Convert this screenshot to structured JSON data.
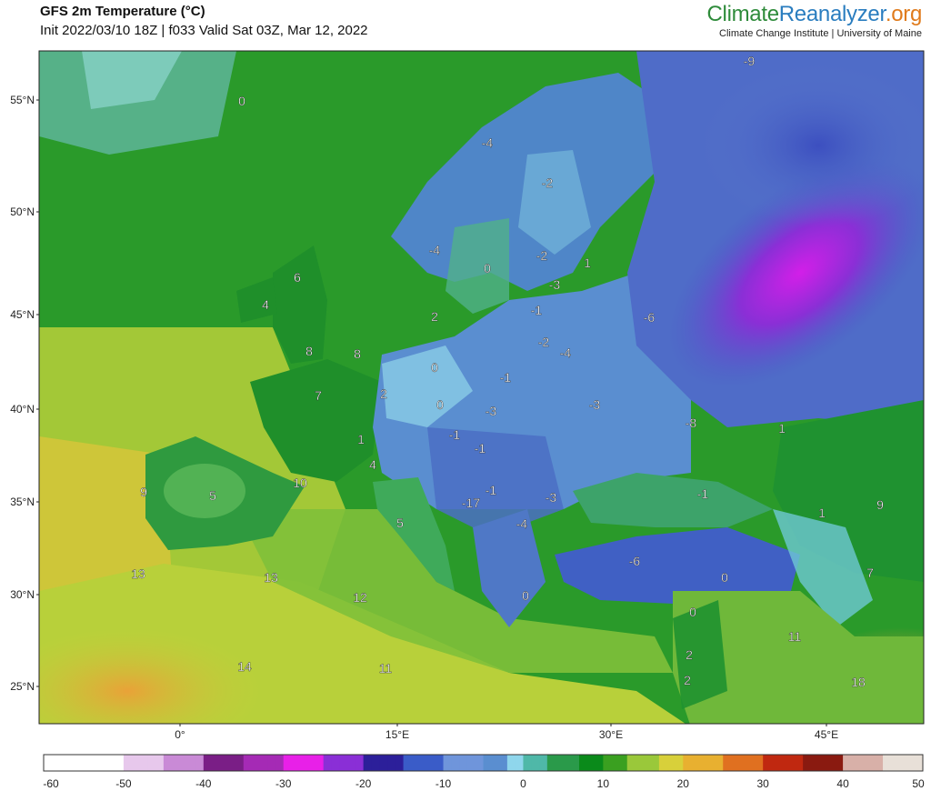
{
  "header": {
    "title": "GFS 2m Temperature (°C)",
    "subtitle": "Init 2022/03/10 18Z | f033 Valid Sat 03Z, Mar 12, 2022",
    "brand_part1": "Climate",
    "brand_part2": "Reanalyzer",
    "brand_part3": ".org",
    "institution": "Climate Change Institute | University of Maine"
  },
  "map": {
    "lat_labels": [
      "55°N",
      "50°N",
      "45°N",
      "40°N",
      "35°N",
      "30°N",
      "25°N"
    ],
    "lon_labels": [
      "0°",
      "15°E",
      "30°E",
      "45°E"
    ],
    "temperature_labels": [
      {
        "text": "-9",
        "region": "northwest-russia"
      },
      {
        "text": "0",
        "region": "iceland"
      },
      {
        "text": "-4",
        "region": "northern-norway"
      },
      {
        "text": "-2",
        "region": "northern-finland"
      },
      {
        "text": "-4",
        "region": "central-norway"
      },
      {
        "text": "0",
        "region": "southern-sweden"
      },
      {
        "text": "-2",
        "region": "gulf-of-bothnia"
      },
      {
        "text": "1",
        "region": "gulf-of-finland"
      },
      {
        "text": "6",
        "region": "scotland"
      },
      {
        "text": "4",
        "region": "ireland"
      },
      {
        "text": "-3",
        "region": "latvia"
      },
      {
        "text": "2",
        "region": "denmark"
      },
      {
        "text": "-1",
        "region": "lithuania"
      },
      {
        "text": "-6",
        "region": "western-russia"
      },
      {
        "text": "8",
        "region": "england"
      },
      {
        "text": "8",
        "region": "belgium"
      },
      {
        "text": "-2",
        "region": "belarus-north"
      },
      {
        "text": "-4",
        "region": "belarus"
      },
      {
        "text": "0",
        "region": "germany"
      },
      {
        "text": "-1",
        "region": "poland"
      },
      {
        "text": "7",
        "region": "france"
      },
      {
        "text": "2",
        "region": "eastern-france"
      },
      {
        "text": "0",
        "region": "southern-germany"
      },
      {
        "text": "-3",
        "region": "czechia"
      },
      {
        "text": "-3",
        "region": "ukraine"
      },
      {
        "text": "-8",
        "region": "southern-russia"
      },
      {
        "text": "1",
        "region": "caucasus-north"
      },
      {
        "text": "1",
        "region": "switzerland"
      },
      {
        "text": "-1",
        "region": "austria"
      },
      {
        "text": "-1",
        "region": "hungary"
      },
      {
        "text": "4",
        "region": "northern-italy"
      },
      {
        "text": "9",
        "region": "portugal"
      },
      {
        "text": "5",
        "region": "spain"
      },
      {
        "text": "10",
        "region": "catalonia"
      },
      {
        "text": "-17",
        "region": "balkans"
      },
      {
        "text": "-1",
        "region": "serbia"
      },
      {
        "text": "-3",
        "region": "romania"
      },
      {
        "text": "-1",
        "region": "black-sea"
      },
      {
        "text": "1",
        "region": "georgia"
      },
      {
        "text": "9",
        "region": "caspian"
      },
      {
        "text": "5",
        "region": "southern-italy"
      },
      {
        "text": "-4",
        "region": "bulgaria"
      },
      {
        "text": "13",
        "region": "morocco"
      },
      {
        "text": "13",
        "region": "northern-algeria"
      },
      {
        "text": "-6",
        "region": "anatolia"
      },
      {
        "text": "0",
        "region": "southern-turkey"
      },
      {
        "text": "7",
        "region": "iran-north"
      },
      {
        "text": "12",
        "region": "tunisia"
      },
      {
        "text": "0",
        "region": "greece"
      },
      {
        "text": "0",
        "region": "cyprus"
      },
      {
        "text": "11",
        "region": "iraq"
      },
      {
        "text": "14",
        "region": "algeria"
      },
      {
        "text": "11",
        "region": "libya"
      },
      {
        "text": "2",
        "region": "levant"
      },
      {
        "text": "2",
        "region": "israel"
      },
      {
        "text": "18",
        "region": "persian-gulf"
      }
    ]
  },
  "colorbar": {
    "tick_labels": [
      "-60",
      "-50",
      "-40",
      "-30",
      "-20",
      "-10",
      "0",
      "10",
      "20",
      "30",
      "40",
      "50"
    ],
    "min": -60,
    "max": 50
  }
}
